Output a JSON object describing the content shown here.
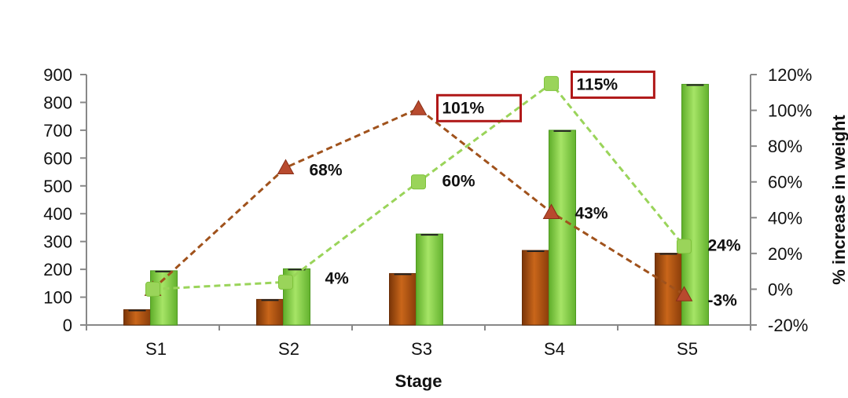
{
  "chart_data": {
    "type": "bar",
    "categories": [
      "S1",
      "S2",
      "S3",
      "S4",
      "S5"
    ],
    "xlabel": "Stage",
    "ylabel": "",
    "y2label": "% increase in weight",
    "ylim": [
      0,
      900
    ],
    "yticks": [
      0,
      100,
      200,
      300,
      400,
      500,
      600,
      700,
      800,
      900
    ],
    "y2lim": [
      -20,
      120
    ],
    "y2ticks": [
      "-20%",
      "0%",
      "20%",
      "40%",
      "60%",
      "80%",
      "100%",
      "120%"
    ],
    "y2tick_values": [
      -20,
      0,
      20,
      40,
      60,
      80,
      100,
      120
    ],
    "bar_series": [
      {
        "values": [
          55,
          92,
          185,
          268,
          258
        ],
        "color": "#b5560f"
      },
      {
        "values": [
          195,
          202,
          327,
          700,
          865
        ],
        "color": "#8cd448"
      }
    ],
    "line_series": [
      {
        "values": [
          0,
          68,
          101,
          43,
          -3
        ],
        "labels": [
          "",
          "68%",
          "101%",
          "43%",
          "-3%"
        ],
        "color": "#a0521c",
        "marker": "triangle"
      },
      {
        "values": [
          0,
          4,
          60,
          115,
          24
        ],
        "labels": [
          "",
          "4%",
          "60%",
          "115%",
          "24%"
        ],
        "color": "#9ad45a",
        "marker": "square"
      }
    ],
    "highlighted_labels": [
      "101%",
      "115%"
    ],
    "grid": false,
    "legend": "none"
  }
}
